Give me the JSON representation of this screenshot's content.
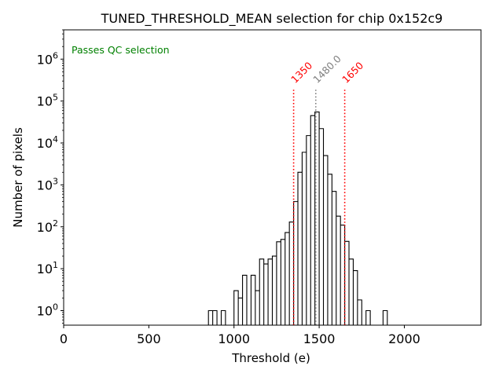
{
  "chart_data": {
    "type": "histogram",
    "title": "TUNED_THRESHOLD_MEAN selection for chip 0x152c9",
    "xlabel": "Threshold (e)",
    "ylabel": "Number of pixels",
    "xlim": [
      0,
      2450
    ],
    "ylim_log": [
      0.45,
      5000000
    ],
    "yscale": "log",
    "x_ticks": [
      {
        "value": 0,
        "label": "0"
      },
      {
        "value": 500,
        "label": "500"
      },
      {
        "value": 1000,
        "label": "1000"
      },
      {
        "value": 1500,
        "label": "1500"
      },
      {
        "value": 2000,
        "label": "2000"
      }
    ],
    "y_ticks": [
      {
        "exp": 0,
        "base": "10",
        "sup": "0"
      },
      {
        "exp": 1,
        "base": "10",
        "sup": "1"
      },
      {
        "exp": 2,
        "base": "10",
        "sup": "2"
      },
      {
        "exp": 3,
        "base": "10",
        "sup": "3"
      },
      {
        "exp": 4,
        "base": "10",
        "sup": "4"
      },
      {
        "exp": 5,
        "base": "10",
        "sup": "5"
      },
      {
        "exp": 6,
        "base": "10",
        "sup": "6"
      }
    ],
    "bin_width": 25,
    "bins": [
      {
        "x": 850,
        "count": 1
      },
      {
        "x": 875,
        "count": 1
      },
      {
        "x": 925,
        "count": 1
      },
      {
        "x": 1000,
        "count": 3
      },
      {
        "x": 1025,
        "count": 2
      },
      {
        "x": 1050,
        "count": 7
      },
      {
        "x": 1100,
        "count": 7
      },
      {
        "x": 1125,
        "count": 3
      },
      {
        "x": 1150,
        "count": 17
      },
      {
        "x": 1175,
        "count": 13
      },
      {
        "x": 1200,
        "count": 17
      },
      {
        "x": 1225,
        "count": 20
      },
      {
        "x": 1250,
        "count": 44
      },
      {
        "x": 1275,
        "count": 50
      },
      {
        "x": 1300,
        "count": 73
      },
      {
        "x": 1325,
        "count": 130
      },
      {
        "x": 1350,
        "count": 400
      },
      {
        "x": 1375,
        "count": 2000
      },
      {
        "x": 1400,
        "count": 6000
      },
      {
        "x": 1425,
        "count": 15000
      },
      {
        "x": 1450,
        "count": 45000
      },
      {
        "x": 1475,
        "count": 55000
      },
      {
        "x": 1500,
        "count": 22000
      },
      {
        "x": 1525,
        "count": 5000
      },
      {
        "x": 1550,
        "count": 1800
      },
      {
        "x": 1575,
        "count": 700
      },
      {
        "x": 1600,
        "count": 180
      },
      {
        "x": 1625,
        "count": 110
      },
      {
        "x": 1650,
        "count": 45
      },
      {
        "x": 1675,
        "count": 17
      },
      {
        "x": 1700,
        "count": 9
      },
      {
        "x": 1725,
        "count": 1.8
      },
      {
        "x": 1750,
        "count": 0.45
      },
      {
        "x": 1775,
        "count": 1
      },
      {
        "x": 1800,
        "count": 0.45
      },
      {
        "x": 1875,
        "count": 1
      }
    ],
    "lines": [
      {
        "value": 1350,
        "label": "1350",
        "color": "#ff0000",
        "style": "dotted"
      },
      {
        "value": 1480,
        "label": "1480.0",
        "color": "#808080",
        "style": "dotted"
      },
      {
        "value": 1650,
        "label": "1650",
        "color": "#ff0000",
        "style": "dotted"
      }
    ],
    "line_top_value": 200000,
    "annotation": {
      "text": "Passes QC selection",
      "color": "#008000"
    }
  }
}
